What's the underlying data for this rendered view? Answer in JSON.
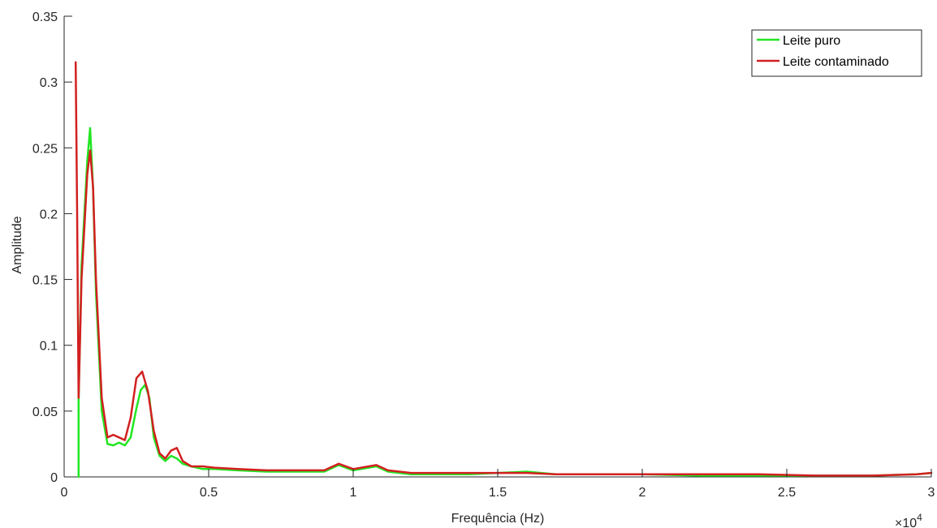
{
  "chart_data": {
    "type": "line",
    "title": "",
    "xlabel": "Frequência (Hz)",
    "ylabel": "Amplitude",
    "xlim": [
      0,
      30000
    ],
    "ylim": [
      0,
      0.35
    ],
    "x_exponent_label": "×10",
    "x_exponent_power": "4",
    "x_ticks": [
      0,
      5000,
      10000,
      15000,
      20000,
      25000,
      30000
    ],
    "x_tick_labels": [
      "0",
      "0.5",
      "1",
      "1.5",
      "2",
      "2.5",
      "3"
    ],
    "y_ticks": [
      0,
      0.05,
      0.1,
      0.15,
      0.2,
      0.25,
      0.3,
      0.35
    ],
    "y_tick_labels": [
      "0",
      "0.05",
      "0.1",
      "0.15",
      "0.2",
      "0.25",
      "0.3",
      "0.35"
    ],
    "grid": false,
    "legend_position": "top-right",
    "series": [
      {
        "name": "Leite puro",
        "color": "#22e622",
        "x": [
          500,
          500,
          600,
          800,
          900,
          1000,
          1100,
          1300,
          1500,
          1700,
          1900,
          2100,
          2300,
          2500,
          2650,
          2800,
          2950,
          3100,
          3300,
          3500,
          3700,
          3900,
          4100,
          4400,
          4800,
          5200,
          6000,
          7000,
          8000,
          9000,
          9500,
          10000,
          10800,
          11200,
          12000,
          13000,
          14000,
          15000,
          16000,
          17000,
          18000,
          19000,
          20000,
          22000,
          24000,
          26000,
          28000,
          29500,
          30000
        ],
        "y": [
          0.0,
          0.058,
          0.16,
          0.24,
          0.265,
          0.22,
          0.14,
          0.05,
          0.025,
          0.024,
          0.026,
          0.024,
          0.03,
          0.052,
          0.066,
          0.07,
          0.06,
          0.03,
          0.016,
          0.012,
          0.016,
          0.014,
          0.01,
          0.008,
          0.006,
          0.006,
          0.005,
          0.004,
          0.004,
          0.004,
          0.009,
          0.005,
          0.008,
          0.004,
          0.002,
          0.002,
          0.002,
          0.003,
          0.004,
          0.002,
          0.002,
          0.002,
          0.002,
          0.001,
          0.001,
          0.001,
          0.001,
          0.002,
          0.003
        ]
      },
      {
        "name": "Leite contaminado",
        "color": "#d22020",
        "x": [
          400,
          450,
          500,
          600,
          800,
          900,
          1000,
          1100,
          1300,
          1500,
          1700,
          1900,
          2100,
          2300,
          2500,
          2700,
          2900,
          3100,
          3300,
          3500,
          3700,
          3900,
          4100,
          4400,
          4800,
          5200,
          6000,
          7000,
          8000,
          9000,
          9500,
          10000,
          10800,
          11200,
          12000,
          13000,
          14000,
          15000,
          16000,
          17000,
          18000,
          19000,
          20000,
          22000,
          24000,
          26000,
          28000,
          29500,
          30000
        ],
        "y": [
          0.315,
          0.2,
          0.06,
          0.15,
          0.23,
          0.248,
          0.22,
          0.15,
          0.06,
          0.03,
          0.032,
          0.03,
          0.028,
          0.045,
          0.075,
          0.08,
          0.065,
          0.035,
          0.018,
          0.014,
          0.02,
          0.022,
          0.012,
          0.008,
          0.008,
          0.007,
          0.006,
          0.005,
          0.005,
          0.005,
          0.01,
          0.006,
          0.009,
          0.005,
          0.003,
          0.003,
          0.003,
          0.003,
          0.003,
          0.002,
          0.002,
          0.002,
          0.002,
          0.002,
          0.002,
          0.001,
          0.001,
          0.002,
          0.003
        ]
      }
    ]
  }
}
